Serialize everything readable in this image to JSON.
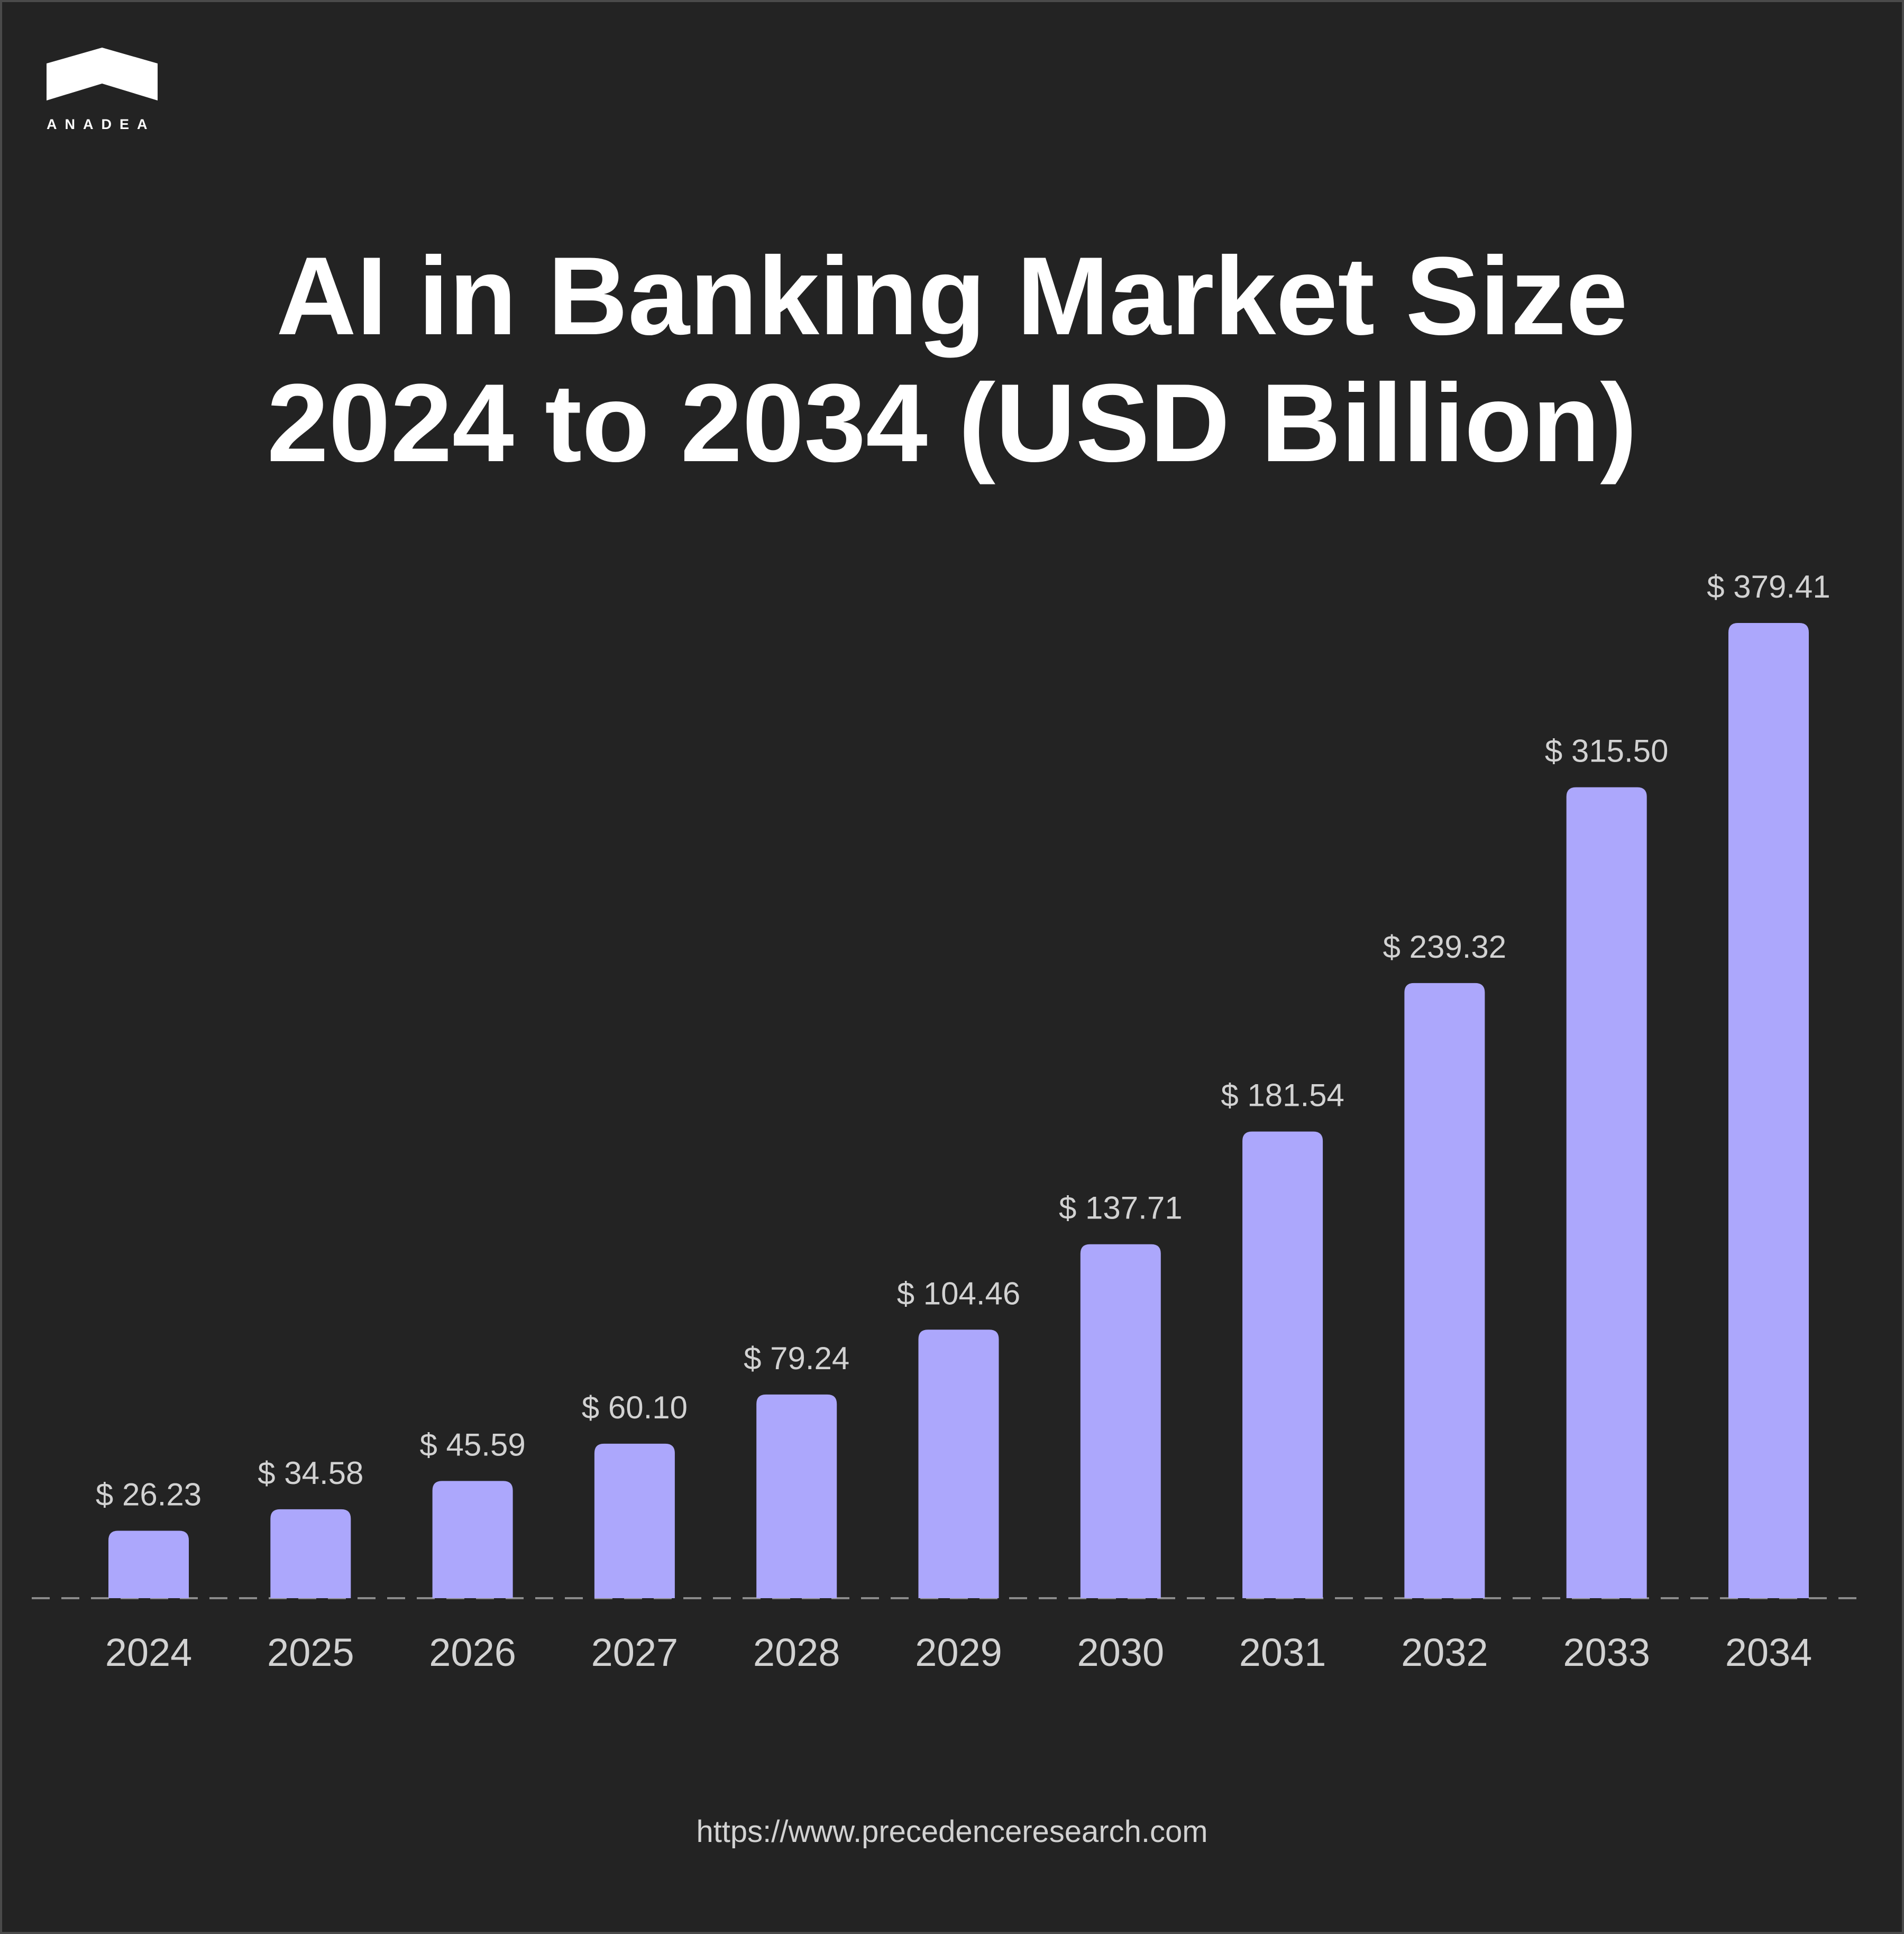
{
  "brand": {
    "name": "ANADEA"
  },
  "title": {
    "line1": "AI in Banking Market Size",
    "line2": "2024 to 2034 (USD Billion)"
  },
  "source": "https://www.precedenceresearch.com",
  "colors": {
    "background": "#232323",
    "bar": "#aca7fc",
    "text": "#ffffff",
    "label": "#d2d2d2",
    "baseline": "#8a8a8a"
  },
  "chart_data": {
    "type": "bar",
    "categories": [
      "2024",
      "2025",
      "2026",
      "2027",
      "2028",
      "2029",
      "2030",
      "2031",
      "2032",
      "2033",
      "2034"
    ],
    "values": [
      26.23,
      34.58,
      45.59,
      60.1,
      79.24,
      104.46,
      137.71,
      181.54,
      239.32,
      315.5,
      379.41
    ],
    "data_labels": [
      "$ 26.23",
      "$ 34.58",
      "$ 45.59",
      "$ 60.10",
      "$ 79.24",
      "$ 104.46",
      "$ 137.71",
      "$ 181.54",
      "$ 239.32",
      "$ 315.50",
      "$ 379.41"
    ],
    "title": "AI in Banking Market Size 2024 to 2034 (USD Billion)",
    "xlabel": "",
    "ylabel": "",
    "ylim": [
      0,
      400
    ],
    "grid": false,
    "legend": "none",
    "baseline": "dashed"
  }
}
